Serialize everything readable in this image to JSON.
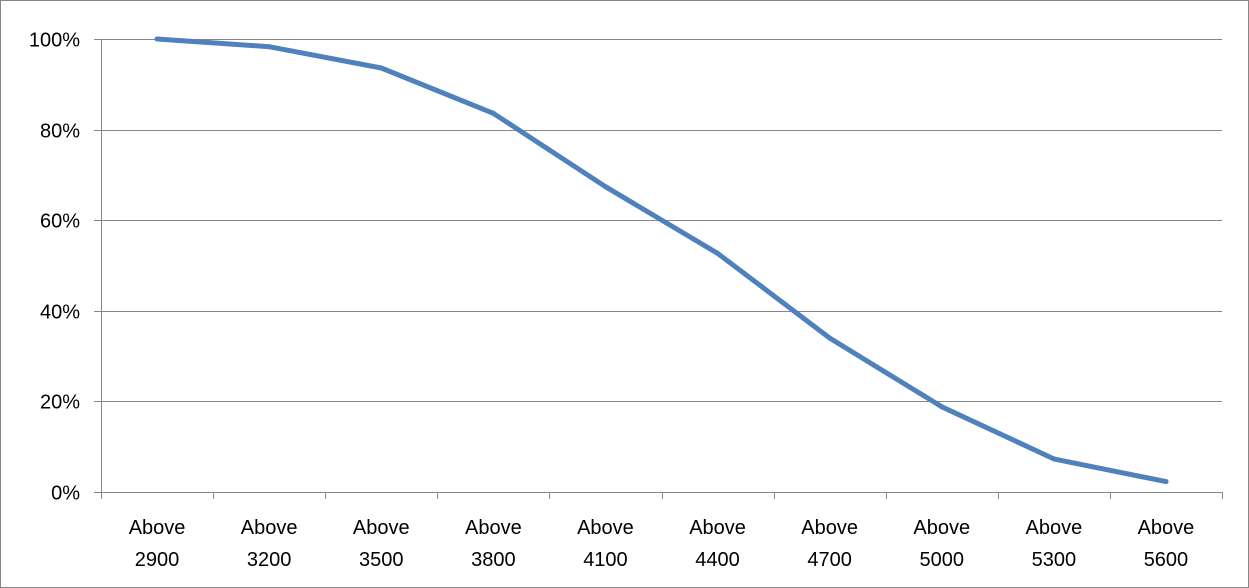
{
  "chart_data": {
    "type": "line",
    "title": "",
    "xlabel": "",
    "ylabel": "",
    "categories": [
      [
        "Above",
        "2900"
      ],
      [
        "Above",
        "3200"
      ],
      [
        "Above",
        "3500"
      ],
      [
        "Above",
        "3800"
      ],
      [
        "Above",
        "4100"
      ],
      [
        "Above",
        "4400"
      ],
      [
        "Above",
        "4700"
      ],
      [
        "Above",
        "5000"
      ],
      [
        "Above",
        "5300"
      ],
      [
        "Above",
        "5600"
      ]
    ],
    "series": [
      {
        "values": [
          100,
          98.3,
          93.6,
          83.6,
          67.4,
          52.7,
          34.0,
          18.8,
          7.3,
          2.3
        ],
        "color": "#4f81bd"
      }
    ],
    "ylim": [
      0,
      100
    ],
    "y_ticks": [
      0,
      20,
      40,
      60,
      80,
      100
    ],
    "y_tick_labels": [
      "0%",
      "20%",
      "40%",
      "60%",
      "80%",
      "100%"
    ],
    "grid": true,
    "legend": "none",
    "colors": {
      "gridline": "#868686",
      "axis": "#868686",
      "border": "#868686"
    }
  }
}
